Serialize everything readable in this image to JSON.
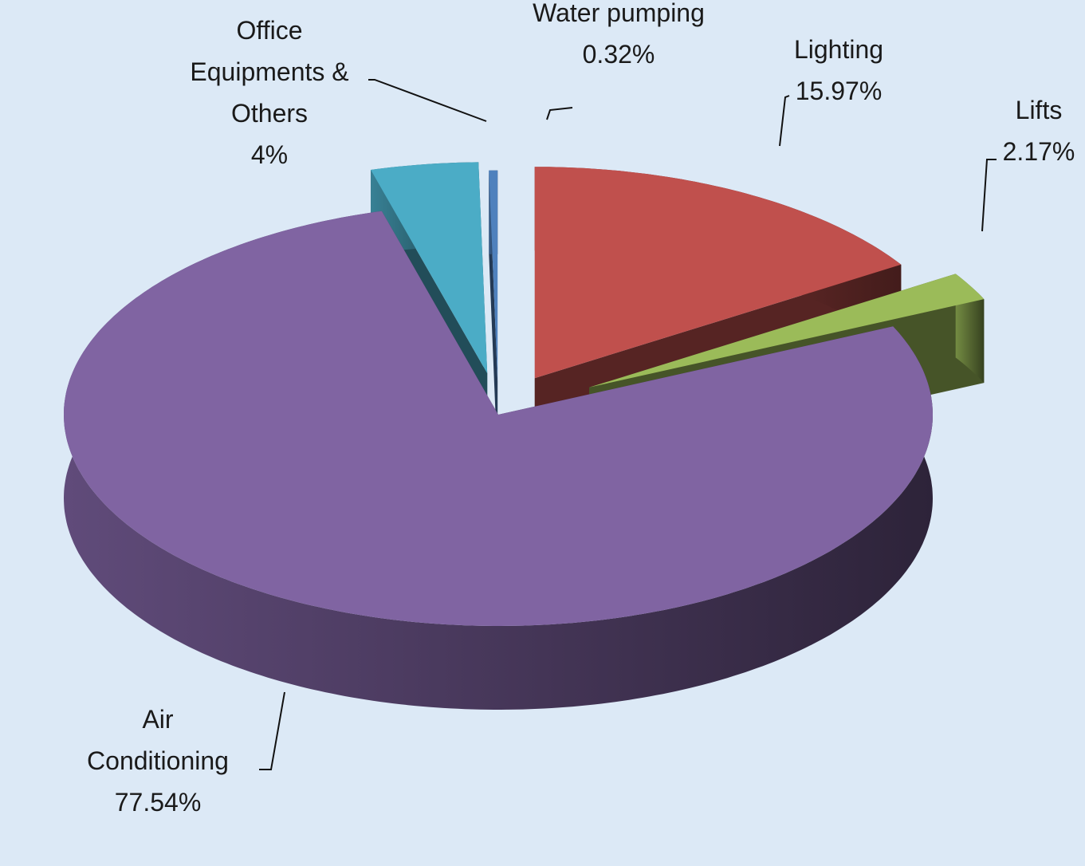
{
  "chart_data": {
    "type": "pie3d",
    "categories": [
      "Lighting",
      "Lifts",
      "Air Conditioning",
      "Office Equipments & Others",
      "Water pumping"
    ],
    "values": [
      15.97,
      2.17,
      77.54,
      4,
      0.32
    ],
    "value_labels": [
      "15.97%",
      "2.17%",
      "77.54%",
      "4%",
      "0.32%"
    ],
    "colors": [
      "#c0504d",
      "#9bbb59",
      "#8064a2",
      "#4bacc6",
      "#4f81bd"
    ]
  }
}
